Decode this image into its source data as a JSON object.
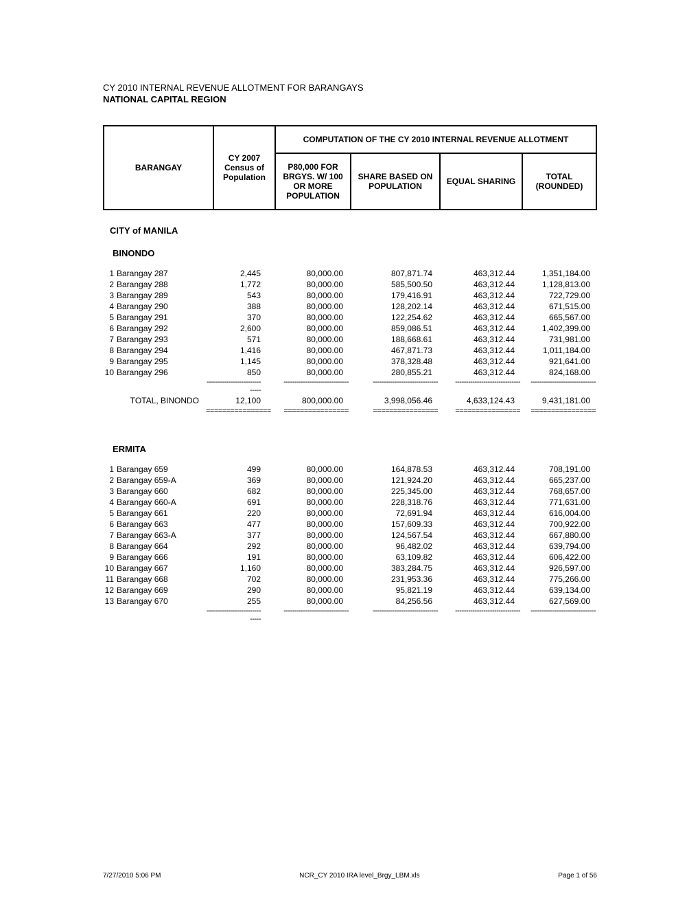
{
  "doc": {
    "title": "CY 2010 INTERNAL REVENUE ALLOTMENT FOR BARANGAYS",
    "subtitle": "NATIONAL CAPITAL REGION"
  },
  "headers": {
    "barangay": "BARANGAY",
    "census": "CY 2007 Census of Population",
    "computation_title": "COMPUTATION OF THE CY 2010 INTERNAL REVENUE ALLOTMENT",
    "p80": "P80,000 FOR BRGYS. W/ 100 OR MORE POPULATION",
    "share": "SHARE BASED ON POPULATION",
    "equal": "EQUAL SHARING",
    "total": "TOTAL (ROUNDED)"
  },
  "city": "CITY of MANILA",
  "districts": [
    {
      "name": "BINONDO",
      "rows": [
        {
          "idx": "1",
          "name": "Barangay 287",
          "pop": "2,445",
          "p80": "80,000.00",
          "share": "807,871.74",
          "equal": "463,312.44",
          "total": "1,351,184.00"
        },
        {
          "idx": "2",
          "name": "Barangay 288",
          "pop": "1,772",
          "p80": "80,000.00",
          "share": "585,500.50",
          "equal": "463,312.44",
          "total": "1,128,813.00"
        },
        {
          "idx": "3",
          "name": "Barangay 289",
          "pop": "543",
          "p80": "80,000.00",
          "share": "179,416.91",
          "equal": "463,312.44",
          "total": "722,729.00"
        },
        {
          "idx": "4",
          "name": "Barangay 290",
          "pop": "388",
          "p80": "80,000.00",
          "share": "128,202.14",
          "equal": "463,312.44",
          "total": "671,515.00"
        },
        {
          "idx": "5",
          "name": "Barangay 291",
          "pop": "370",
          "p80": "80,000.00",
          "share": "122,254.62",
          "equal": "463,312.44",
          "total": "665,567.00"
        },
        {
          "idx": "6",
          "name": "Barangay 292",
          "pop": "2,600",
          "p80": "80,000.00",
          "share": "859,086.51",
          "equal": "463,312.44",
          "total": "1,402,399.00"
        },
        {
          "idx": "7",
          "name": "Barangay 293",
          "pop": "571",
          "p80": "80,000.00",
          "share": "188,668.61",
          "equal": "463,312.44",
          "total": "731,981.00"
        },
        {
          "idx": "8",
          "name": "Barangay 294",
          "pop": "1,416",
          "p80": "80,000.00",
          "share": "467,871.73",
          "equal": "463,312.44",
          "total": "1,011,184.00"
        },
        {
          "idx": "9",
          "name": "Barangay 295",
          "pop": "1,145",
          "p80": "80,000.00",
          "share": "378,328.48",
          "equal": "463,312.44",
          "total": "921,641.00"
        },
        {
          "idx": "10",
          "name": "Barangay 296",
          "pop": "850",
          "p80": "80,000.00",
          "share": "280,855.21",
          "equal": "463,312.44",
          "total": "824,168.00"
        }
      ],
      "total": {
        "label": "TOTAL, BINONDO",
        "pop": "12,100",
        "p80": "800,000.00",
        "share": "3,998,056.46",
        "equal": "4,633,124.43",
        "total": "9,431,181.00"
      }
    },
    {
      "name": "ERMITA",
      "rows": [
        {
          "idx": "1",
          "name": "Barangay 659",
          "pop": "499",
          "p80": "80,000.00",
          "share": "164,878.53",
          "equal": "463,312.44",
          "total": "708,191.00"
        },
        {
          "idx": "2",
          "name": "Barangay 659-A",
          "pop": "369",
          "p80": "80,000.00",
          "share": "121,924.20",
          "equal": "463,312.44",
          "total": "665,237.00"
        },
        {
          "idx": "3",
          "name": "Barangay 660",
          "pop": "682",
          "p80": "80,000.00",
          "share": "225,345.00",
          "equal": "463,312.44",
          "total": "768,657.00"
        },
        {
          "idx": "4",
          "name": "Barangay 660-A",
          "pop": "691",
          "p80": "80,000.00",
          "share": "228,318.76",
          "equal": "463,312.44",
          "total": "771,631.00"
        },
        {
          "idx": "5",
          "name": "Barangay 661",
          "pop": "220",
          "p80": "80,000.00",
          "share": "72,691.94",
          "equal": "463,312.44",
          "total": "616,004.00"
        },
        {
          "idx": "6",
          "name": "Barangay 663",
          "pop": "477",
          "p80": "80,000.00",
          "share": "157,609.33",
          "equal": "463,312.44",
          "total": "700,922.00"
        },
        {
          "idx": "7",
          "name": "Barangay 663-A",
          "pop": "377",
          "p80": "80,000.00",
          "share": "124,567.54",
          "equal": "463,312.44",
          "total": "667,880.00"
        },
        {
          "idx": "8",
          "name": "Barangay 664",
          "pop": "292",
          "p80": "80,000.00",
          "share": "96,482.02",
          "equal": "463,312.44",
          "total": "639,794.00"
        },
        {
          "idx": "9",
          "name": "Barangay 666",
          "pop": "191",
          "p80": "80,000.00",
          "share": "63,109.82",
          "equal": "463,312.44",
          "total": "606,422.00"
        },
        {
          "idx": "10",
          "name": "Barangay 667",
          "pop": "1,160",
          "p80": "80,000.00",
          "share": "383,284.75",
          "equal": "463,312.44",
          "total": "926,597.00"
        },
        {
          "idx": "11",
          "name": "Barangay 668",
          "pop": "702",
          "p80": "80,000.00",
          "share": "231,953.36",
          "equal": "463,312.44",
          "total": "775,266.00"
        },
        {
          "idx": "12",
          "name": "Barangay 669",
          "pop": "290",
          "p80": "80,000.00",
          "share": "95,821.19",
          "equal": "463,312.44",
          "total": "639,134.00"
        },
        {
          "idx": "13",
          "name": "Barangay 670",
          "pop": "255",
          "p80": "80,000.00",
          "share": "84,256.56",
          "equal": "463,312.44",
          "total": "627,569.00"
        }
      ]
    }
  ],
  "sep": {
    "dash": "------------------------------",
    "eq": "================"
  },
  "footer": {
    "left": "7/27/2010 5:06 PM",
    "center": "NCR_CY 2010 IRA level_Brgy_LBM.xls",
    "right": "Page 1 of 56"
  },
  "style": {
    "font_family": "Arial",
    "background": "#ffffff",
    "border_color": "#000000",
    "text_color": "#000000"
  }
}
